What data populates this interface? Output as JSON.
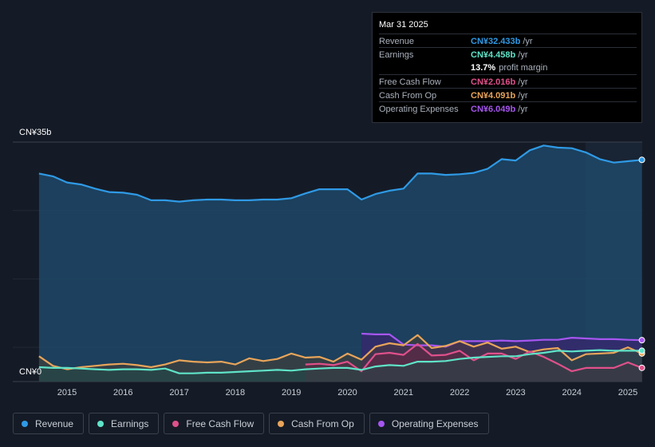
{
  "tooltip": {
    "date": "Mar 31 2025",
    "rows": [
      {
        "label": "Revenue",
        "value": "CN¥32.433b",
        "unit": "/yr",
        "color": "#2f9ae6"
      },
      {
        "label": "Earnings",
        "value": "CN¥4.458b",
        "unit": "/yr",
        "color": "#5fe3c8"
      },
      {
        "label": "",
        "value": "13.7%",
        "unit": "profit margin",
        "color": "#ffffff"
      },
      {
        "label": "Free Cash Flow",
        "value": "CN¥2.016b",
        "unit": "/yr",
        "color": "#e0508a"
      },
      {
        "label": "Cash From Op",
        "value": "CN¥4.091b",
        "unit": "/yr",
        "color": "#e8a45a"
      },
      {
        "label": "Operating Expenses",
        "value": "CN¥6.049b",
        "unit": "/yr",
        "color": "#a656f0"
      }
    ]
  },
  "legend": [
    {
      "label": "Revenue",
      "color": "#2f9ae6"
    },
    {
      "label": "Earnings",
      "color": "#5fe3c8"
    },
    {
      "label": "Free Cash Flow",
      "color": "#e0508a"
    },
    {
      "label": "Cash From Op",
      "color": "#e8a45a"
    },
    {
      "label": "Operating Expenses",
      "color": "#a656f0"
    }
  ],
  "chart_data": {
    "type": "area",
    "ylim": [
      0,
      35
    ],
    "y_tick_labels": [
      "CN¥35b",
      "CN¥0"
    ],
    "x_ticks": [
      2015,
      2016,
      2017,
      2018,
      2019,
      2020,
      2021,
      2022,
      2023,
      2024,
      2025
    ],
    "grid": true,
    "series": [
      {
        "name": "Revenue",
        "color": "#2f9ae6",
        "x": [
          2014.5,
          2014.75,
          2015,
          2015.25,
          2015.5,
          2015.75,
          2016,
          2016.25,
          2016.5,
          2016.75,
          2017,
          2017.25,
          2017.5,
          2017.75,
          2018,
          2018.25,
          2018.5,
          2018.75,
          2019,
          2019.25,
          2019.5,
          2019.75,
          2020,
          2020.25,
          2020.5,
          2020.75,
          2021,
          2021.25,
          2021.5,
          2021.75,
          2022,
          2022.25,
          2022.5,
          2022.75,
          2023,
          2023.25,
          2023.5,
          2023.75,
          2024,
          2024.25,
          2024.5,
          2024.75,
          2025,
          2025.25
        ],
        "values": [
          30.4,
          30,
          29.1,
          28.8,
          28.2,
          27.7,
          27.6,
          27.3,
          26.5,
          26.5,
          26.3,
          26.5,
          26.6,
          26.6,
          26.5,
          26.5,
          26.6,
          26.6,
          26.8,
          27.5,
          28.1,
          28.1,
          28.1,
          26.6,
          27.4,
          27.9,
          28.2,
          30.4,
          30.4,
          30.2,
          30.3,
          30.5,
          31.1,
          32.5,
          32.3,
          33.8,
          34.5,
          34.2,
          34.1,
          33.5,
          32.5,
          32,
          32.2,
          32.4
        ]
      },
      {
        "name": "Earnings",
        "color": "#5fe3c8",
        "x": [
          2014.5,
          2014.75,
          2015,
          2015.25,
          2015.5,
          2015.75,
          2016,
          2016.25,
          2016.5,
          2016.75,
          2017,
          2017.25,
          2017.5,
          2017.75,
          2018,
          2018.25,
          2018.5,
          2018.75,
          2019,
          2019.25,
          2019.5,
          2019.75,
          2020,
          2020.25,
          2020.5,
          2020.75,
          2021,
          2021.25,
          2021.5,
          2021.75,
          2022,
          2022.25,
          2022.5,
          2022.75,
          2023,
          2023.25,
          2023.5,
          2023.75,
          2024,
          2024.25,
          2024.5,
          2024.75,
          2025,
          2025.25
        ],
        "values": [
          2.1,
          2,
          2,
          1.9,
          1.8,
          1.7,
          1.8,
          1.8,
          1.7,
          1.9,
          1.2,
          1.2,
          1.3,
          1.3,
          1.4,
          1.5,
          1.6,
          1.7,
          1.6,
          1.8,
          1.9,
          2,
          2,
          1.7,
          2.2,
          2.4,
          2.3,
          2.9,
          2.9,
          3,
          3.3,
          3.5,
          3.6,
          3.7,
          3.7,
          4,
          4.2,
          4.5,
          4.4,
          4.5,
          4.6,
          4.5,
          4.5,
          4.5
        ]
      },
      {
        "name": "Free Cash Flow",
        "color": "#e0508a",
        "x": [
          2019.25,
          2019.5,
          2019.75,
          2020,
          2020.25,
          2020.5,
          2020.75,
          2021,
          2021.25,
          2021.5,
          2021.75,
          2022,
          2022.25,
          2022.5,
          2022.75,
          2023,
          2023.25,
          2023.5,
          2023.75,
          2024,
          2024.25,
          2024.5,
          2024.75,
          2025,
          2025.25
        ],
        "values": [
          2.5,
          2.6,
          2.4,
          2.9,
          1.5,
          4,
          4.2,
          3.9,
          5.5,
          3.8,
          3.9,
          4.5,
          3.1,
          4.1,
          4.1,
          3.3,
          4.4,
          3.6,
          2.6,
          1.5,
          2,
          2,
          2,
          2.8,
          2
        ]
      },
      {
        "name": "Cash From Op",
        "color": "#e8a45a",
        "x": [
          2014.5,
          2014.75,
          2015,
          2015.25,
          2015.5,
          2015.75,
          2016,
          2016.25,
          2016.5,
          2016.75,
          2017,
          2017.25,
          2017.5,
          2017.75,
          2018,
          2018.25,
          2018.5,
          2018.75,
          2019,
          2019.25,
          2019.5,
          2019.75,
          2020,
          2020.25,
          2020.5,
          2020.75,
          2021,
          2021.25,
          2021.5,
          2021.75,
          2022,
          2022.25,
          2022.5,
          2022.75,
          2023,
          2023.25,
          2023.5,
          2023.75,
          2024,
          2024.25,
          2024.5,
          2024.75,
          2025,
          2025.25
        ],
        "values": [
          3.7,
          2.3,
          1.8,
          2.1,
          2.3,
          2.5,
          2.6,
          2.4,
          2.1,
          2.5,
          3.1,
          2.9,
          2.8,
          2.9,
          2.5,
          3.4,
          3,
          3.3,
          4.1,
          3.5,
          3.6,
          2.9,
          4.1,
          3.2,
          5.1,
          5.6,
          5.3,
          6.8,
          4.9,
          5.2,
          5.9,
          5.1,
          5.7,
          4.8,
          5.1,
          4.3,
          4.7,
          4.9,
          3.1,
          4,
          4.1,
          4.2,
          5,
          4.1
        ]
      },
      {
        "name": "Operating Expenses",
        "color": "#a656f0",
        "x": [
          2020.25,
          2020.5,
          2020.75,
          2021,
          2021.25,
          2021.5,
          2021.75,
          2022,
          2022.25,
          2022.5,
          2022.75,
          2023,
          2023.25,
          2023.5,
          2023.75,
          2024,
          2024.25,
          2024.5,
          2024.75,
          2025,
          2025.25
        ],
        "values": [
          7,
          6.9,
          6.9,
          5.4,
          5.3,
          5.3,
          5.1,
          5.9,
          5.9,
          5.9,
          6,
          5.9,
          6,
          6.1,
          6.1,
          6.4,
          6.3,
          6.2,
          6.2,
          6.1,
          6.05
        ]
      }
    ]
  }
}
